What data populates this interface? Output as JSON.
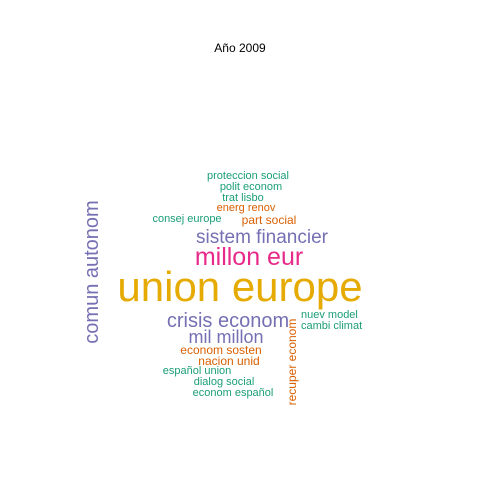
{
  "title": "Año 2009",
  "colors": {
    "teal": "#1b9e77",
    "orange": "#d95f02",
    "purple": "#7570b3",
    "magenta": "#e7298a",
    "gold": "#e6ab02"
  },
  "words": {
    "union_europe": "union europe",
    "millon_eur": "millon eur",
    "sistem_financier": "sistem financier",
    "crisis_econom": "crisis econom",
    "mil_millon": "mil millon",
    "comun_autonom": "comun autonom",
    "proteccion_social": "proteccion social",
    "polit_econom": "polit econom",
    "trat_lisbo": "trat lisbo",
    "energ_renov": "energ renov",
    "consej_europe": "consej europe",
    "part_social": "part social",
    "nuev_model": "nuev model",
    "cambi_climat": "cambi climat",
    "recuper_econom": "recuper econom",
    "econom_sosten": "econom sosten",
    "nacion_unid": "nacion unid",
    "espanol_union": "español union",
    "dialog_social": "dialog social",
    "econom_espanol": "econom español"
  }
}
